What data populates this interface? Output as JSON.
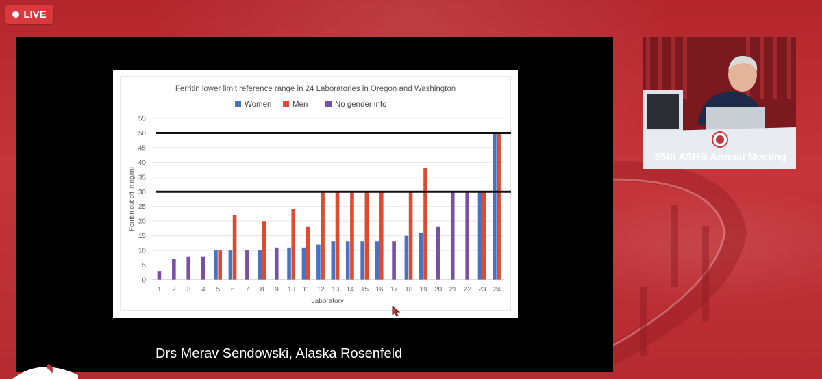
{
  "live_label": "LIVE",
  "caption": "Drs Merav Sendowski, Alaska Rosenfeld",
  "speaker_video": {
    "banner": "65th ASH® Annual Meeting"
  },
  "colors": {
    "women": "#4a72c4",
    "men": "#e04a30",
    "no_gender": "#7b4fa6",
    "accent_red": "#c3353a"
  },
  "chart_data": {
    "type": "bar",
    "title": "Ferritin lower limit reference range in 24 Laboratories in Oregon and Washington",
    "xlabel": "Laboratory",
    "ylabel": "Ferritin cut off in ng/ml",
    "ylim": [
      0,
      55
    ],
    "yticks": [
      0,
      5,
      10,
      15,
      20,
      25,
      30,
      35,
      40,
      45,
      50,
      55
    ],
    "categories": [
      "1",
      "2",
      "3",
      "4",
      "5",
      "6",
      "7",
      "8",
      "9",
      "10",
      "11",
      "12",
      "13",
      "14",
      "15",
      "16",
      "17",
      "18",
      "19",
      "20",
      "21",
      "22",
      "23",
      "24"
    ],
    "series": [
      {
        "name": "Women",
        "color": "#4a72c4",
        "values": [
          null,
          null,
          null,
          null,
          10,
          10,
          null,
          10,
          null,
          11,
          11,
          12,
          13,
          13,
          13,
          13,
          null,
          15,
          16,
          null,
          null,
          null,
          30,
          50
        ]
      },
      {
        "name": "Men",
        "color": "#e04a30",
        "values": [
          null,
          null,
          null,
          null,
          10,
          22,
          null,
          20,
          null,
          24,
          18,
          30,
          30,
          30,
          30,
          30,
          null,
          30,
          38,
          null,
          null,
          null,
          30,
          50
        ]
      },
      {
        "name": "No gender info",
        "color": "#7b4fa6",
        "values": [
          3,
          7,
          8,
          8,
          null,
          null,
          10,
          null,
          11,
          null,
          null,
          null,
          null,
          null,
          null,
          null,
          13,
          null,
          null,
          18,
          30,
          30,
          null,
          null
        ]
      }
    ],
    "reference_lines": [
      50,
      30
    ],
    "legend": "top-center",
    "grid": true
  }
}
